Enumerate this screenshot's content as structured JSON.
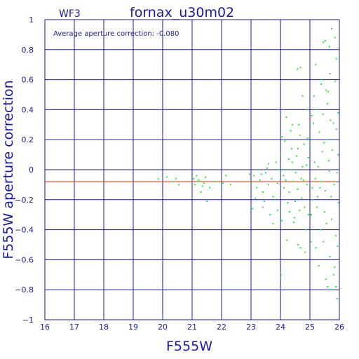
{
  "header": {
    "chip": "WF3",
    "field": "fornax_u30m02"
  },
  "annotation": "Average aperture correction:  -0.080",
  "colors": {
    "axis": "#1a1aa8",
    "grid": "#1a1aa8",
    "points": "#22ee22",
    "mean_line": "#cc2200"
  },
  "chart_data": {
    "type": "scatter",
    "title": "fornax_u30m02",
    "xlabel": "F555W",
    "ylabel": "F555W aperture correction",
    "xlim": [
      16,
      26
    ],
    "ylim": [
      -1,
      1
    ],
    "xticks": [
      "16",
      "17",
      "18",
      "19",
      "20",
      "21",
      "22",
      "23",
      "24",
      "25",
      "26"
    ],
    "yticks": [
      "−1",
      "−0.8",
      "−0.6",
      "−0.4",
      "−0.2",
      "0",
      "0.2",
      "0.4",
      "0.6",
      "0.8",
      "1"
    ],
    "grid": true,
    "mean_correction": -0.08,
    "series": [
      {
        "points": [
          [
            19.85,
            -0.06
          ],
          [
            20.15,
            -0.05
          ],
          [
            20.35,
            -0.08
          ],
          [
            20.55,
            -0.1
          ],
          [
            20.45,
            -0.06
          ],
          [
            21.05,
            -0.06
          ],
          [
            21.15,
            -0.04
          ],
          [
            21.25,
            -0.08
          ],
          [
            21.35,
            -0.11
          ],
          [
            21.22,
            -0.07
          ],
          [
            21.3,
            -0.15
          ],
          [
            21.4,
            -0.09
          ],
          [
            21.5,
            -0.21
          ],
          [
            21.6,
            -0.12
          ],
          [
            21.1,
            -0.1
          ],
          [
            21.45,
            -0.05
          ],
          [
            22.05,
            -0.09
          ],
          [
            22.15,
            -0.04
          ],
          [
            22.3,
            -0.1
          ],
          [
            21.75,
            -0.08
          ],
          [
            23.0,
            -0.09
          ],
          [
            23.1,
            -0.04
          ],
          [
            23.2,
            -0.12
          ],
          [
            23.3,
            -0.07
          ],
          [
            23.4,
            -0.15
          ],
          [
            23.5,
            -0.02
          ],
          [
            23.6,
            -0.1
          ],
          [
            23.7,
            -0.06
          ],
          [
            23.8,
            -0.2
          ],
          [
            23.9,
            -0.09
          ],
          [
            23.55,
            0.01
          ],
          [
            23.85,
            0.05
          ],
          [
            23.95,
            0.0
          ],
          [
            23.4,
            -0.25
          ],
          [
            23.65,
            -0.3
          ],
          [
            23.75,
            -0.18
          ],
          [
            23.35,
            -0.03
          ],
          [
            23.15,
            -0.19
          ],
          [
            23.05,
            -0.26
          ],
          [
            22.95,
            -0.03
          ],
          [
            23.6,
            0.04
          ],
          [
            23.75,
            -0.36
          ],
          [
            23.9,
            -0.27
          ],
          [
            23.25,
            0.0
          ],
          [
            23.45,
            -0.21
          ],
          [
            24.0,
            0.11
          ],
          [
            24.1,
            -0.04
          ],
          [
            24.2,
            0.0
          ],
          [
            24.3,
            -0.15
          ],
          [
            24.4,
            0.05
          ],
          [
            24.5,
            -0.21
          ],
          [
            24.6,
            0.14
          ],
          [
            24.7,
            -0.06
          ],
          [
            24.8,
            0.17
          ],
          [
            24.9,
            -0.1
          ],
          [
            24.05,
            -0.34
          ],
          [
            24.15,
            0.19
          ],
          [
            24.25,
            -0.22
          ],
          [
            24.35,
            0.26
          ],
          [
            24.45,
            -0.35
          ],
          [
            24.55,
            0.09
          ],
          [
            24.65,
            -0.27
          ],
          [
            24.75,
            0.02
          ],
          [
            24.85,
            -0.4
          ],
          [
            24.95,
            0.08
          ],
          [
            24.12,
            -0.12
          ],
          [
            24.28,
            0.07
          ],
          [
            24.42,
            -0.08
          ],
          [
            24.58,
            -0.13
          ],
          [
            24.72,
            -0.19
          ],
          [
            24.88,
            0.03
          ],
          [
            24.22,
            -0.47
          ],
          [
            24.48,
            -0.32
          ],
          [
            24.68,
            -0.52
          ],
          [
            24.82,
            -0.25
          ],
          [
            24.05,
            0.22
          ],
          [
            24.38,
            0.14
          ],
          [
            24.62,
            0.3
          ],
          [
            24.92,
            0.21
          ],
          [
            24.18,
            -0.07
          ],
          [
            24.52,
            -0.02
          ],
          [
            24.78,
            -0.07
          ],
          [
            24.95,
            -0.3
          ],
          [
            24.31,
            -0.28
          ],
          [
            24.66,
            0.23
          ],
          [
            24.46,
            0.0
          ],
          [
            24.84,
            -0.55
          ],
          [
            24.92,
            0.4
          ],
          [
            24.75,
            0.49
          ],
          [
            24.58,
            0.67
          ],
          [
            24.68,
            0.68
          ],
          [
            24.02,
            -0.7
          ],
          [
            24.6,
            -0.5
          ],
          [
            24.2,
            0.35
          ],
          [
            24.4,
            0.3
          ],
          [
            25.0,
            0.14
          ],
          [
            25.08,
            -0.12
          ],
          [
            25.16,
            0.05
          ],
          [
            25.24,
            -0.25
          ],
          [
            25.32,
            0.25
          ],
          [
            25.4,
            -0.08
          ],
          [
            25.48,
            0.18
          ],
          [
            25.56,
            -0.36
          ],
          [
            25.64,
            0.06
          ],
          [
            25.72,
            -0.18
          ],
          [
            25.8,
            0.31
          ],
          [
            25.88,
            -0.44
          ],
          [
            25.96,
            0.1
          ],
          [
            25.04,
            -0.3
          ],
          [
            25.12,
            0.31
          ],
          [
            25.2,
            -0.52
          ],
          [
            25.28,
            0.02
          ],
          [
            25.36,
            -0.4
          ],
          [
            25.44,
            0.37
          ],
          [
            25.52,
            -0.14
          ],
          [
            25.6,
            0.44
          ],
          [
            25.68,
            -0.58
          ],
          [
            25.76,
            0.13
          ],
          [
            25.84,
            -0.65
          ],
          [
            25.92,
            -0.02
          ],
          [
            25.03,
            -0.48
          ],
          [
            25.14,
            0.49
          ],
          [
            25.26,
            -0.18
          ],
          [
            25.38,
            0.57
          ],
          [
            25.5,
            -0.28
          ],
          [
            25.62,
            0.52
          ],
          [
            25.74,
            -0.33
          ],
          [
            25.86,
            0.59
          ],
          [
            25.98,
            -0.22
          ],
          [
            25.06,
            0.36
          ],
          [
            25.18,
            -0.06
          ],
          [
            25.3,
            -0.64
          ],
          [
            25.42,
            0.12
          ],
          [
            25.54,
            -0.73
          ],
          [
            25.66,
            -0.01
          ],
          [
            25.78,
            -0.8
          ],
          [
            25.9,
            0.27
          ],
          [
            25.1,
            -0.2
          ],
          [
            25.34,
            -0.12
          ],
          [
            25.58,
            0.2
          ],
          [
            25.82,
            -0.1
          ],
          [
            25.22,
            0.4
          ],
          [
            25.46,
            -0.48
          ],
          [
            25.7,
            0.33
          ],
          [
            25.94,
            -0.51
          ],
          [
            25.46,
            0.85
          ],
          [
            25.52,
            0.86
          ],
          [
            25.74,
            0.94
          ],
          [
            25.86,
            0.88
          ],
          [
            25.9,
            0.74
          ],
          [
            25.68,
            0.64
          ],
          [
            25.8,
            -0.7
          ],
          [
            25.92,
            -0.86
          ],
          [
            25.88,
            -0.78
          ],
          [
            25.6,
            -0.78
          ],
          [
            25.4,
            0.6
          ],
          [
            25.2,
            0.7
          ],
          [
            25.66,
            0.82
          ],
          [
            25.96,
            0.38
          ],
          [
            25.55,
            0.53
          ]
        ]
      }
    ]
  }
}
